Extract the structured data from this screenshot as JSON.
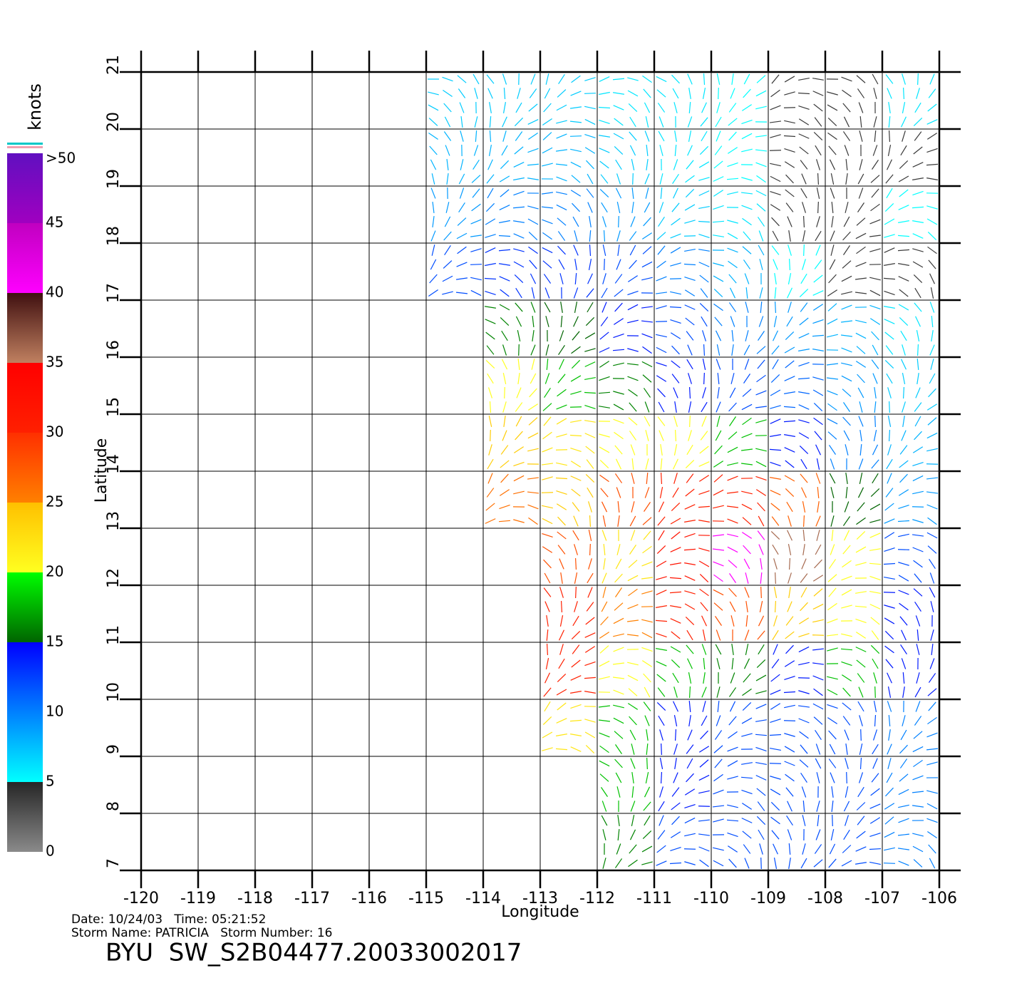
{
  "chart_data": {
    "type": "vector_field",
    "x_label": "Longitude",
    "y_label": "Latitude",
    "xlim": [
      -120,
      -106
    ],
    "ylim": [
      7,
      21
    ],
    "xticks": [
      -120,
      -119,
      -118,
      -117,
      -116,
      -115,
      -114,
      -113,
      -112,
      -111,
      -110,
      -109,
      -108,
      -107,
      -106
    ],
    "yticks": [
      7,
      8,
      9,
      10,
      11,
      12,
      13,
      14,
      15,
      16,
      17,
      18,
      19,
      20,
      21
    ],
    "grid": true,
    "cell_lon": [
      -114.5,
      -113.5,
      -112.5,
      -111.5,
      -110.5,
      -109.5,
      -108.5,
      -107.5,
      -106.5
    ],
    "cell_lat": [
      20.5,
      19.5,
      18.5,
      17.5,
      16.5,
      15.5,
      14.5,
      13.5,
      12.5,
      11.5,
      10.5,
      9.5,
      8.5,
      7.5
    ],
    "speed": [
      [
        7,
        7,
        7,
        6,
        6,
        5,
        4,
        4,
        6
      ],
      [
        8,
        8,
        8,
        7,
        6,
        5,
        4,
        4,
        4
      ],
      [
        9,
        10,
        10,
        9,
        7,
        6,
        4,
        4,
        5
      ],
      [
        12,
        13,
        13,
        12,
        10,
        8,
        5,
        4,
        4
      ],
      [
        null,
        16,
        15,
        14,
        12,
        10,
        9,
        8,
        6
      ],
      [
        null,
        20,
        18,
        16,
        14,
        12,
        11,
        9,
        7
      ],
      [
        null,
        24,
        22,
        20,
        20,
        18,
        14,
        10,
        8
      ],
      [
        null,
        26,
        24,
        28,
        30,
        30,
        27,
        15,
        9
      ],
      [
        null,
        null,
        28,
        22,
        32,
        40,
        36,
        20,
        12
      ],
      [
        null,
        null,
        30,
        25,
        30,
        28,
        24,
        20,
        14
      ],
      [
        null,
        null,
        30,
        20,
        18,
        16,
        14,
        18,
        14
      ],
      [
        null,
        null,
        22,
        18,
        14,
        12,
        12,
        12,
        10
      ],
      [
        null,
        null,
        null,
        18,
        14,
        12,
        12,
        12,
        10
      ],
      [
        null,
        null,
        null,
        16,
        12,
        12,
        12,
        12,
        10
      ]
    ],
    "colorbar": {
      "title": "knots",
      "ticks": [
        0,
        5,
        10,
        15,
        20,
        25,
        30,
        35,
        40,
        45,
        {
          "value": 50,
          "label": ">50"
        }
      ],
      "segments": [
        {
          "range": [
            0,
            5
          ],
          "colors": [
            "#8a8a8a",
            "#262626"
          ]
        },
        {
          "range": [
            5,
            10
          ],
          "colors": [
            "#00ffff",
            "#0080ff"
          ]
        },
        {
          "range": [
            10,
            15
          ],
          "colors": [
            "#0080ff",
            "#0000ff"
          ]
        },
        {
          "range": [
            15,
            20
          ],
          "colors": [
            "#006400",
            "#00ff00"
          ]
        },
        {
          "range": [
            20,
            25
          ],
          "colors": [
            "#ffff20",
            "#ffc000"
          ]
        },
        {
          "range": [
            25,
            30
          ],
          "colors": [
            "#ff8000",
            "#ff3000"
          ]
        },
        {
          "range": [
            30,
            35
          ],
          "colors": [
            "#ff2000",
            "#ff0000"
          ]
        },
        {
          "range": [
            35,
            40
          ],
          "colors": [
            "#c08060",
            "#401010"
          ]
        },
        {
          "range": [
            40,
            45
          ],
          "colors": [
            "#ff00ff",
            "#c000c0"
          ]
        },
        {
          "range": [
            45,
            50
          ],
          "colors": [
            "#a000c0",
            "#6010c0"
          ]
        }
      ]
    },
    "annotations": [
      "Date: 10/24/03   Time: 05:21:52",
      "Storm Name: PATRICIA   Storm Number: 16"
    ],
    "title": "BYU  SW_S2B04477.20033002017"
  }
}
